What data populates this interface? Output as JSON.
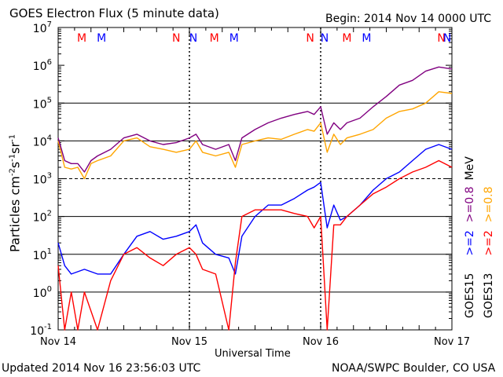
{
  "header": {
    "title": "GOES Electron Flux (5 minute data)",
    "begin": "Begin: 2014 Nov 14 0000 UTC"
  },
  "footer": {
    "updated": "Updated 2014 Nov 16 23:56:03 UTC",
    "credit": "NOAA/SWPC Boulder, CO USA"
  },
  "chart_data": {
    "type": "line",
    "title": "GOES Electron Flux (5 minute data)",
    "xlabel": "Universal Time",
    "ylabel": "Particles cm⁻²s⁻¹sr⁻¹",
    "yscale": "log",
    "ylim": [
      0.1,
      10000000
    ],
    "xlim": [
      0,
      3
    ],
    "y_ticks": [
      {
        "base": "10",
        "exp": "-1"
      },
      {
        "base": "10",
        "exp": "0"
      },
      {
        "base": "10",
        "exp": "1"
      },
      {
        "base": "10",
        "exp": "2"
      },
      {
        "base": "10",
        "exp": "3"
      },
      {
        "base": "10",
        "exp": "4"
      },
      {
        "base": "10",
        "exp": "5"
      },
      {
        "base": "10",
        "exp": "6"
      },
      {
        "base": "10",
        "exp": "7"
      }
    ],
    "x_ticks": [
      {
        "x": 0,
        "label": "Nov 14"
      },
      {
        "x": 1,
        "label": "Nov 15"
      },
      {
        "x": 2,
        "label": "Nov 16"
      },
      {
        "x": 3,
        "label": "Nov 17"
      }
    ],
    "grid": {
      "major_y": [
        1,
        10,
        100,
        10000,
        100000
      ],
      "dashed_y": [
        1000
      ]
    },
    "markers": [
      {
        "x": 0.18,
        "label": "M",
        "color": "#ff0000"
      },
      {
        "x": 0.33,
        "label": "M",
        "color": "#0000ff"
      },
      {
        "x": 0.9,
        "label": "N",
        "color": "#ff0000"
      },
      {
        "x": 1.03,
        "label": "N",
        "color": "#0000ff"
      },
      {
        "x": 1.19,
        "label": "M",
        "color": "#ff0000"
      },
      {
        "x": 1.34,
        "label": "M",
        "color": "#0000ff"
      },
      {
        "x": 1.92,
        "label": "N",
        "color": "#ff0000"
      },
      {
        "x": 2.03,
        "label": "N",
        "color": "#0000ff"
      },
      {
        "x": 2.2,
        "label": "M",
        "color": "#ff0000"
      },
      {
        "x": 2.35,
        "label": "M",
        "color": "#0000ff"
      },
      {
        "x": 2.92,
        "label": "N",
        "color": "#ff0000"
      },
      {
        "x": 3.05,
        "label": "N",
        "color": "#0000ff"
      }
    ],
    "legend": {
      "placement": "right",
      "groups": [
        {
          "satellite": "GOES13",
          "items": [
            {
              "label": ">=2",
              "color": "#ff0000"
            },
            {
              "label": ">=0.8",
              "color": "#ffa500"
            }
          ]
        },
        {
          "satellite": "GOES15",
          "items": [
            {
              "label": ">=2",
              "color": "#0000ff"
            },
            {
              "label": ">=0.8",
              "color": "#800080"
            }
          ]
        }
      ],
      "unit": "MeV"
    },
    "series": [
      {
        "name": "GOES13 >=0.8 MeV",
        "color": "#ffa500",
        "x": [
          0,
          0.05,
          0.1,
          0.15,
          0.2,
          0.25,
          0.3,
          0.4,
          0.5,
          0.6,
          0.7,
          0.8,
          0.9,
          1.0,
          1.05,
          1.1,
          1.2,
          1.3,
          1.35,
          1.4,
          1.5,
          1.6,
          1.7,
          1.8,
          1.9,
          1.95,
          2.0,
          2.05,
          2.1,
          2.15,
          2.2,
          2.3,
          2.4,
          2.5,
          2.6,
          2.7,
          2.8,
          2.9,
          3.0
        ],
        "y": [
          10000,
          2000,
          1800,
          2000,
          1000,
          2500,
          3000,
          4000,
          10000,
          12000,
          7000,
          6000,
          5000,
          6000,
          10000,
          5000,
          4000,
          5000,
          2000,
          8000,
          10000,
          12000,
          11000,
          15000,
          20000,
          18000,
          30000,
          5000,
          15000,
          8000,
          12000,
          15000,
          20000,
          40000,
          60000,
          70000,
          100000,
          200000,
          180000
        ]
      },
      {
        "name": "GOES15 >=0.8 MeV",
        "color": "#800080",
        "x": [
          0,
          0.05,
          0.1,
          0.15,
          0.2,
          0.25,
          0.3,
          0.4,
          0.5,
          0.6,
          0.7,
          0.8,
          0.9,
          1.0,
          1.05,
          1.1,
          1.2,
          1.3,
          1.35,
          1.4,
          1.5,
          1.6,
          1.7,
          1.8,
          1.9,
          1.95,
          2.0,
          2.05,
          2.1,
          2.15,
          2.2,
          2.3,
          2.4,
          2.5,
          2.6,
          2.7,
          2.8,
          2.9,
          3.0
        ],
        "y": [
          12000,
          3000,
          2500,
          2500,
          1500,
          3000,
          4000,
          6000,
          12000,
          15000,
          10000,
          8000,
          9000,
          12000,
          15000,
          8000,
          6000,
          8000,
          3000,
          12000,
          20000,
          30000,
          40000,
          50000,
          60000,
          50000,
          80000,
          15000,
          30000,
          20000,
          30000,
          40000,
          80000,
          150000,
          300000,
          400000,
          700000,
          900000,
          800000
        ]
      },
      {
        "name": "GOES15 >=2 MeV",
        "color": "#0000ff",
        "x": [
          0,
          0.05,
          0.1,
          0.2,
          0.3,
          0.4,
          0.5,
          0.6,
          0.7,
          0.8,
          0.9,
          1.0,
          1.05,
          1.1,
          1.2,
          1.3,
          1.35,
          1.4,
          1.5,
          1.6,
          1.7,
          1.8,
          1.9,
          1.95,
          2.0,
          2.05,
          2.1,
          2.15,
          2.2,
          2.3,
          2.4,
          2.5,
          2.6,
          2.7,
          2.8,
          2.9,
          3.0
        ],
        "y": [
          20,
          5,
          3,
          4,
          3,
          3,
          10,
          30,
          40,
          25,
          30,
          40,
          60,
          20,
          10,
          8,
          3,
          30,
          100,
          200,
          200,
          300,
          500,
          600,
          800,
          50,
          200,
          80,
          100,
          200,
          500,
          1000,
          1500,
          3000,
          6000,
          8000,
          6000
        ]
      },
      {
        "name": "GOES13 >=2 MeV",
        "color": "#ff0000",
        "x": [
          0,
          0.05,
          0.1,
          0.15,
          0.2,
          0.3,
          0.4,
          0.5,
          0.6,
          0.7,
          0.8,
          0.9,
          1.0,
          1.05,
          1.1,
          1.2,
          1.3,
          1.35,
          1.4,
          1.5,
          1.6,
          1.7,
          1.8,
          1.9,
          1.95,
          2.0,
          2.05,
          2.1,
          2.15,
          2.2,
          2.3,
          2.4,
          2.5,
          2.6,
          2.7,
          2.8,
          2.9,
          3.0
        ],
        "y": [
          5,
          0.1,
          1,
          0.1,
          1,
          0.1,
          2,
          10,
          15,
          8,
          5,
          10,
          15,
          10,
          4,
          3,
          0.1,
          6,
          100,
          150,
          150,
          150,
          120,
          100,
          50,
          100,
          0.1,
          60,
          60,
          100,
          200,
          400,
          600,
          1000,
          1500,
          2000,
          3000,
          2000
        ]
      }
    ]
  }
}
